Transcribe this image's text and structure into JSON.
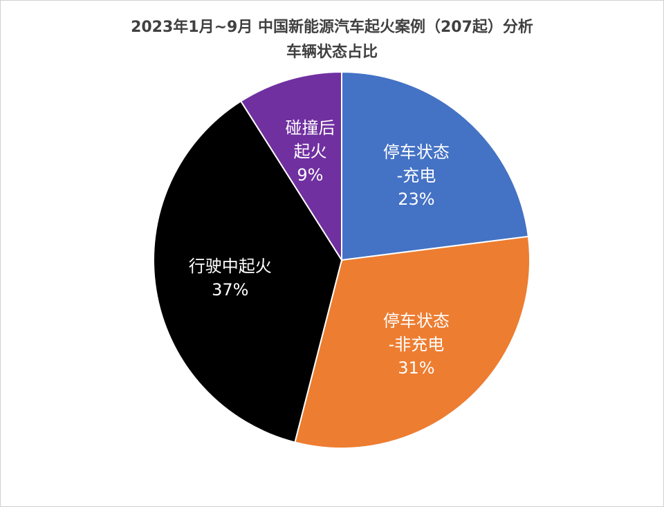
{
  "chart_data": {
    "type": "pie",
    "title": "2023年1月~9月 中国新能源汽车起火案例（207起）分析",
    "subtitle": "车辆状态占比",
    "categories": [
      "停车状态\n-充电",
      "停车状态\n-非充电",
      "行驶中起火",
      "碰撞后\n起火"
    ],
    "values": [
      23,
      31,
      37,
      9
    ],
    "value_labels": [
      "23%",
      "31%",
      "37%",
      "9%"
    ],
    "colors": [
      "#4472c4",
      "#ed7d31",
      "#000000",
      "#7030a0"
    ]
  }
}
